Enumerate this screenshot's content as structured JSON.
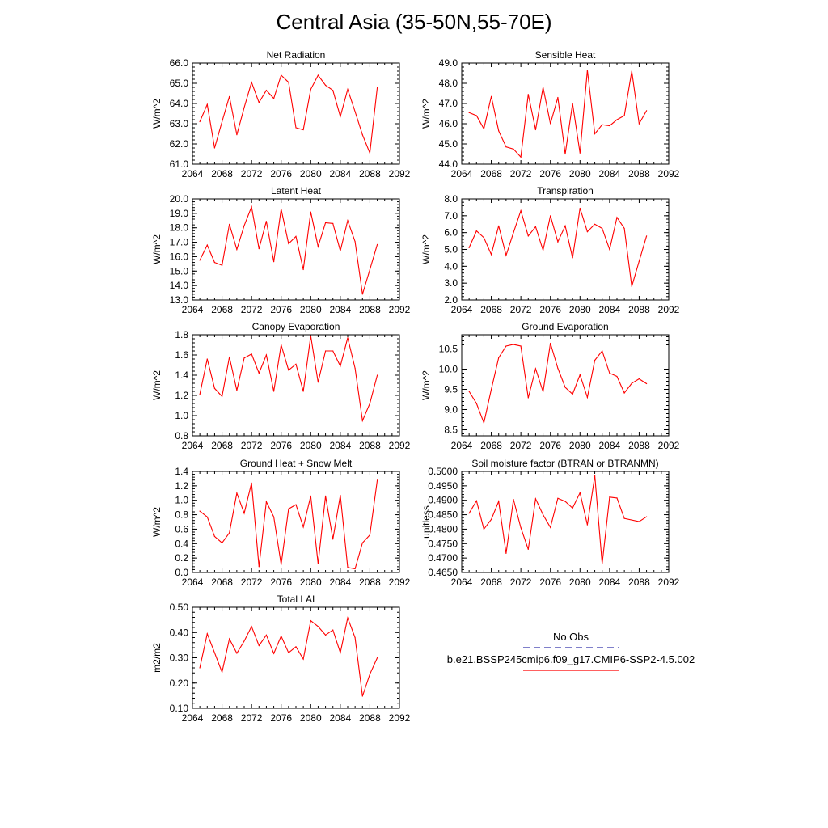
{
  "title": "Central Asia (35-50N,55-70E)",
  "legend": {
    "obs_label": "No Obs",
    "model_label": "b.e21.BSSP245cmip6.f09_g17.CMIP6-SSP2-4.5.002",
    "obs_color": "#3333aa",
    "model_color": "#ff0000"
  },
  "chart_data": [
    {
      "type": "line",
      "title": "Net Radiation",
      "ylabel": "W/m^2",
      "xlim": [
        2064,
        2092
      ],
      "ylim": [
        61.0,
        66.0
      ],
      "xticks": [
        "2064",
        "2068",
        "2072",
        "2076",
        "2080",
        "2084",
        "2088",
        "2092"
      ],
      "yticks": [
        "61.0",
        "62.0",
        "63.0",
        "64.0",
        "65.0",
        "66.0"
      ],
      "x": [
        2065,
        2066,
        2067,
        2068,
        2069,
        2070,
        2071,
        2072,
        2073,
        2074,
        2075,
        2076,
        2077,
        2078,
        2079,
        2080,
        2081,
        2082,
        2083,
        2084,
        2085,
        2086,
        2087,
        2088,
        2089
      ],
      "series": [
        {
          "values": [
            63.1,
            63.95,
            61.8,
            63.1,
            64.35,
            62.45,
            63.8,
            65.05,
            64.05,
            64.65,
            64.25,
            65.4,
            65.05,
            62.8,
            62.7,
            64.7,
            65.4,
            64.9,
            64.65,
            63.35,
            64.7,
            63.6,
            62.45,
            61.55,
            64.8
          ]
        }
      ]
    },
    {
      "type": "line",
      "title": "Sensible Heat",
      "ylabel": "W/m^2",
      "xlim": [
        2064,
        2092
      ],
      "ylim": [
        44.0,
        49.0
      ],
      "xticks": [
        "2064",
        "2068",
        "2072",
        "2076",
        "2080",
        "2084",
        "2088",
        "2092"
      ],
      "yticks": [
        "44.0",
        "45.0",
        "46.0",
        "47.0",
        "48.0",
        "49.0"
      ],
      "x": [
        2065,
        2066,
        2067,
        2068,
        2069,
        2070,
        2071,
        2072,
        2073,
        2074,
        2075,
        2076,
        2077,
        2078,
        2079,
        2080,
        2081,
        2082,
        2083,
        2084,
        2085,
        2086,
        2087,
        2088,
        2089
      ],
      "series": [
        {
          "values": [
            46.55,
            46.4,
            45.75,
            47.35,
            45.65,
            44.85,
            44.75,
            44.35,
            47.45,
            45.7,
            47.8,
            46.0,
            47.3,
            44.5,
            47.0,
            44.55,
            48.65,
            45.5,
            45.95,
            45.9,
            46.2,
            46.4,
            48.6,
            46.0,
            46.65
          ]
        }
      ]
    },
    {
      "type": "line",
      "title": "Latent Heat",
      "ylabel": "W/m^2",
      "xlim": [
        2064,
        2092
      ],
      "ylim": [
        13.0,
        20.0
      ],
      "xticks": [
        "2064",
        "2068",
        "2072",
        "2076",
        "2080",
        "2084",
        "2088",
        "2092"
      ],
      "yticks": [
        "13.0",
        "14.0",
        "15.0",
        "16.0",
        "17.0",
        "18.0",
        "19.0",
        "20.0"
      ],
      "x": [
        2065,
        2066,
        2067,
        2068,
        2069,
        2070,
        2071,
        2072,
        2073,
        2074,
        2075,
        2076,
        2077,
        2078,
        2079,
        2080,
        2081,
        2082,
        2083,
        2084,
        2085,
        2086,
        2087,
        2088,
        2089
      ],
      "series": [
        {
          "values": [
            15.75,
            16.8,
            15.6,
            15.4,
            18.25,
            16.5,
            18.15,
            19.45,
            16.55,
            18.45,
            15.65,
            19.3,
            16.9,
            17.4,
            15.1,
            19.1,
            16.7,
            18.35,
            18.3,
            16.4,
            18.5,
            17.05,
            13.4,
            15.1,
            16.85
          ]
        }
      ]
    },
    {
      "type": "line",
      "title": "Transpiration",
      "ylabel": "W/m^2",
      "xlim": [
        2064,
        2092
      ],
      "ylim": [
        2.0,
        8.0
      ],
      "xticks": [
        "2064",
        "2068",
        "2072",
        "2076",
        "2080",
        "2084",
        "2088",
        "2092"
      ],
      "yticks": [
        "2.0",
        "3.0",
        "4.0",
        "5.0",
        "6.0",
        "7.0",
        "8.0"
      ],
      "x": [
        2065,
        2066,
        2067,
        2068,
        2069,
        2070,
        2071,
        2072,
        2073,
        2074,
        2075,
        2076,
        2077,
        2078,
        2079,
        2080,
        2081,
        2082,
        2083,
        2084,
        2085,
        2086,
        2087,
        2088,
        2089
      ],
      "series": [
        {
          "values": [
            5.1,
            6.1,
            5.7,
            4.7,
            6.4,
            4.65,
            6.0,
            7.3,
            5.8,
            6.35,
            4.95,
            7.0,
            5.45,
            6.4,
            4.5,
            7.45,
            6.05,
            6.5,
            6.25,
            5.0,
            6.9,
            6.25,
            2.8,
            4.3,
            5.8
          ]
        }
      ]
    },
    {
      "type": "line",
      "title": "Canopy Evaporation",
      "ylabel": "W/m^2",
      "xlim": [
        2064,
        2092
      ],
      "ylim": [
        0.8,
        1.8
      ],
      "xticks": [
        "2064",
        "2068",
        "2072",
        "2076",
        "2080",
        "2084",
        "2088",
        "2092"
      ],
      "yticks": [
        "0.8",
        "1.0",
        "1.2",
        "1.4",
        "1.6",
        "1.8"
      ],
      "x": [
        2065,
        2066,
        2067,
        2068,
        2069,
        2070,
        2071,
        2072,
        2073,
        2074,
        2075,
        2076,
        2077,
        2078,
        2079,
        2080,
        2081,
        2082,
        2083,
        2084,
        2085,
        2086,
        2087,
        2088,
        2089
      ],
      "series": [
        {
          "values": [
            1.21,
            1.56,
            1.27,
            1.19,
            1.58,
            1.25,
            1.57,
            1.61,
            1.42,
            1.6,
            1.24,
            1.7,
            1.45,
            1.51,
            1.24,
            1.79,
            1.33,
            1.64,
            1.64,
            1.49,
            1.77,
            1.47,
            0.95,
            1.12,
            1.4
          ]
        }
      ]
    },
    {
      "type": "line",
      "title": "Ground Evaporation",
      "ylabel": "W/m^2",
      "xlim": [
        2064,
        2092
      ],
      "ylim": [
        8.35,
        10.85
      ],
      "xticks": [
        "2064",
        "2068",
        "2072",
        "2076",
        "2080",
        "2084",
        "2088",
        "2092"
      ],
      "yticks": [
        "8.5",
        "9.0",
        "9.5",
        "10.0",
        "10.5"
      ],
      "x": [
        2065,
        2066,
        2067,
        2068,
        2069,
        2070,
        2071,
        2072,
        2073,
        2074,
        2075,
        2076,
        2077,
        2078,
        2079,
        2080,
        2081,
        2082,
        2083,
        2084,
        2085,
        2086,
        2087,
        2088,
        2089
      ],
      "series": [
        {
          "values": [
            9.45,
            9.15,
            8.67,
            9.5,
            10.28,
            10.57,
            10.61,
            10.57,
            9.29,
            10.01,
            9.44,
            10.64,
            10.02,
            9.55,
            9.38,
            9.86,
            9.3,
            10.22,
            10.45,
            9.9,
            9.82,
            9.41,
            9.65,
            9.76,
            9.64
          ]
        }
      ]
    },
    {
      "type": "line",
      "title": "Ground Heat + Snow Melt",
      "ylabel": "W/m^2",
      "xlim": [
        2064,
        2092
      ],
      "ylim": [
        0.0,
        1.4
      ],
      "xticks": [
        "2064",
        "2068",
        "2072",
        "2076",
        "2080",
        "2084",
        "2088",
        "2092"
      ],
      "yticks": [
        "0.0",
        "0.2",
        "0.4",
        "0.6",
        "0.8",
        "1.0",
        "1.2",
        "1.4"
      ],
      "x": [
        2065,
        2066,
        2067,
        2068,
        2069,
        2070,
        2071,
        2072,
        2073,
        2074,
        2075,
        2076,
        2077,
        2078,
        2079,
        2080,
        2081,
        2082,
        2083,
        2084,
        2085,
        2086,
        2087,
        2088,
        2089
      ],
      "series": [
        {
          "values": [
            0.85,
            0.77,
            0.5,
            0.41,
            0.55,
            1.1,
            0.82,
            1.24,
            0.08,
            0.98,
            0.77,
            0.11,
            0.88,
            0.94,
            0.63,
            1.06,
            0.12,
            1.06,
            0.46,
            1.07,
            0.07,
            0.05,
            0.41,
            0.52,
            1.28
          ]
        }
      ]
    },
    {
      "type": "line",
      "title": "Soil moisture factor (BTRAN or BTRANMN)",
      "ylabel": "unitless",
      "xlim": [
        2064,
        2092
      ],
      "ylim": [
        0.465,
        0.5
      ],
      "xticks": [
        "2064",
        "2068",
        "2072",
        "2076",
        "2080",
        "2084",
        "2088",
        "2092"
      ],
      "yticks": [
        "0.4650",
        "0.4700",
        "0.4750",
        "0.4800",
        "0.4850",
        "0.4900",
        "0.4950",
        "0.5000"
      ],
      "x": [
        2065,
        2066,
        2067,
        2068,
        2069,
        2070,
        2071,
        2072,
        2073,
        2074,
        2075,
        2076,
        2077,
        2078,
        2079,
        2080,
        2081,
        2082,
        2083,
        2084,
        2085,
        2086,
        2088,
        2089
      ],
      "series": [
        {
          "values": [
            0.4855,
            0.4898,
            0.48,
            0.4834,
            0.4896,
            0.4716,
            0.4903,
            0.4805,
            0.473,
            0.4905,
            0.485,
            0.4806,
            0.4907,
            0.4896,
            0.4873,
            0.4926,
            0.4815,
            0.4985,
            0.468,
            0.4911,
            0.4908,
            0.4837,
            0.4826,
            0.4843
          ]
        }
      ]
    },
    {
      "type": "line",
      "title": "Total LAI",
      "ylabel": "m2/m2",
      "xlim": [
        2064,
        2092
      ],
      "ylim": [
        0.1,
        0.5
      ],
      "xticks": [
        "2064",
        "2068",
        "2072",
        "2076",
        "2080",
        "2084",
        "2088",
        "2092"
      ],
      "yticks": [
        "0.10",
        "0.20",
        "0.30",
        "0.40",
        "0.50"
      ],
      "x": [
        2065,
        2066,
        2067,
        2068,
        2069,
        2070,
        2071,
        2072,
        2073,
        2074,
        2075,
        2076,
        2077,
        2078,
        2079,
        2080,
        2081,
        2082,
        2083,
        2084,
        2085,
        2086,
        2087,
        2088,
        2089
      ],
      "series": [
        {
          "values": [
            0.26,
            0.395,
            0.32,
            0.243,
            0.375,
            0.318,
            0.366,
            0.424,
            0.348,
            0.39,
            0.317,
            0.386,
            0.32,
            0.344,
            0.295,
            0.447,
            0.424,
            0.39,
            0.41,
            0.32,
            0.458,
            0.38,
            0.148,
            0.235,
            0.3
          ]
        }
      ]
    }
  ]
}
